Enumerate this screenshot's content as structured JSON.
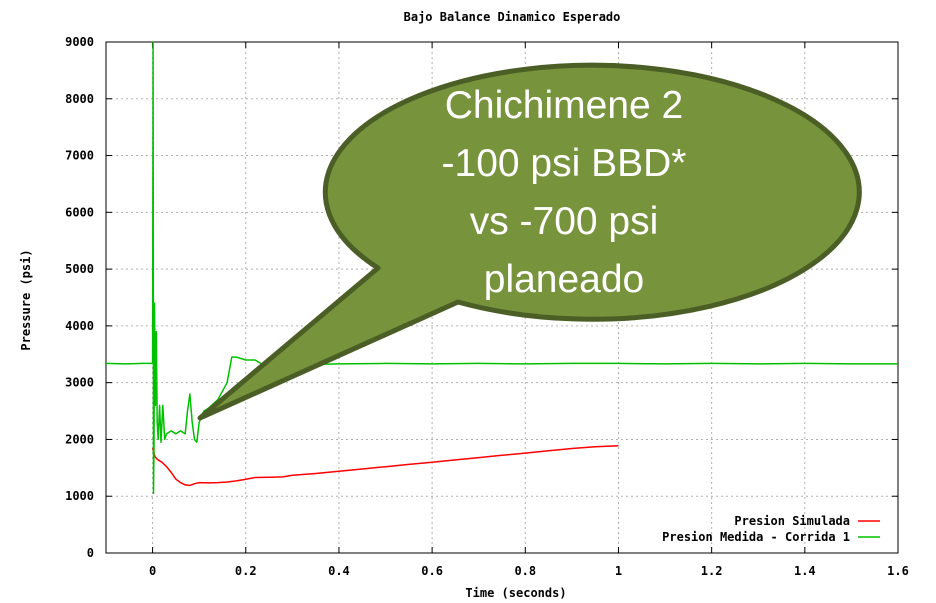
{
  "chart_data": {
    "type": "line",
    "title": "Bajo Balance Dinamico Esperado",
    "xlabel": "Time (seconds)",
    "ylabel": "Pressure (psi)",
    "xlim": [
      -0.1,
      1.6
    ],
    "ylim": [
      0,
      9000
    ],
    "x_ticks": [
      "0",
      "0.2",
      "0.4",
      "0.6",
      "0.8",
      "1",
      "1.2",
      "1.4",
      "1.6"
    ],
    "y_ticks": [
      "0",
      "1000",
      "2000",
      "3000",
      "4000",
      "5000",
      "6000",
      "7000",
      "8000",
      "9000"
    ],
    "grid": true,
    "legend_position": "bottom-right",
    "series": [
      {
        "name": "Presion Simulada",
        "color": "#ff0000",
        "points": [
          [
            0.0,
            1850
          ],
          [
            0.005,
            1700
          ],
          [
            0.01,
            1650
          ],
          [
            0.02,
            1600
          ],
          [
            0.03,
            1520
          ],
          [
            0.04,
            1420
          ],
          [
            0.05,
            1300
          ],
          [
            0.06,
            1240
          ],
          [
            0.07,
            1200
          ],
          [
            0.08,
            1190
          ],
          [
            0.09,
            1220
          ],
          [
            0.1,
            1240
          ],
          [
            0.12,
            1235
          ],
          [
            0.14,
            1240
          ],
          [
            0.16,
            1250
          ],
          [
            0.18,
            1270
          ],
          [
            0.2,
            1300
          ],
          [
            0.22,
            1330
          ],
          [
            0.25,
            1335
          ],
          [
            0.28,
            1340
          ],
          [
            0.3,
            1370
          ],
          [
            0.35,
            1400
          ],
          [
            0.4,
            1440
          ],
          [
            0.45,
            1480
          ],
          [
            0.5,
            1520
          ],
          [
            0.55,
            1560
          ],
          [
            0.6,
            1600
          ],
          [
            0.65,
            1640
          ],
          [
            0.7,
            1680
          ],
          [
            0.75,
            1720
          ],
          [
            0.8,
            1760
          ],
          [
            0.85,
            1800
          ],
          [
            0.9,
            1840
          ],
          [
            0.95,
            1870
          ],
          [
            1.0,
            1890
          ]
        ]
      },
      {
        "name": "Presion Medida - Corrida 1",
        "color": "#00c000",
        "points": [
          [
            -0.1,
            3340
          ],
          [
            -0.06,
            3330
          ],
          [
            -0.02,
            3340
          ],
          [
            -0.005,
            3340
          ],
          [
            0.0,
            3340
          ],
          [
            0.001,
            9000
          ],
          [
            0.002,
            1050
          ],
          [
            0.003,
            1900
          ],
          [
            0.004,
            4400
          ],
          [
            0.006,
            2600
          ],
          [
            0.008,
            3900
          ],
          [
            0.01,
            2300
          ],
          [
            0.012,
            2000
          ],
          [
            0.015,
            2600
          ],
          [
            0.018,
            1950
          ],
          [
            0.022,
            2600
          ],
          [
            0.026,
            2000
          ],
          [
            0.03,
            2100
          ],
          [
            0.04,
            2150
          ],
          [
            0.05,
            2100
          ],
          [
            0.06,
            2150
          ],
          [
            0.07,
            2100
          ],
          [
            0.075,
            2500
          ],
          [
            0.08,
            2800
          ],
          [
            0.085,
            2300
          ],
          [
            0.09,
            2000
          ],
          [
            0.095,
            1950
          ],
          [
            0.1,
            2300
          ],
          [
            0.11,
            2500
          ],
          [
            0.12,
            2550
          ],
          [
            0.14,
            2700
          ],
          [
            0.16,
            3000
          ],
          [
            0.17,
            3450
          ],
          [
            0.18,
            3450
          ],
          [
            0.2,
            3400
          ],
          [
            0.22,
            3400
          ],
          [
            0.24,
            3300
          ],
          [
            0.26,
            3290
          ],
          [
            0.28,
            3300
          ],
          [
            0.3,
            3310
          ],
          [
            0.34,
            3320
          ],
          [
            0.4,
            3330
          ],
          [
            0.5,
            3340
          ],
          [
            0.6,
            3330
          ],
          [
            0.7,
            3340
          ],
          [
            0.8,
            3330
          ],
          [
            0.9,
            3340
          ],
          [
            1.0,
            3340
          ],
          [
            1.1,
            3330
          ],
          [
            1.2,
            3340
          ],
          [
            1.3,
            3330
          ],
          [
            1.4,
            3340
          ],
          [
            1.5,
            3330
          ],
          [
            1.6,
            3330
          ]
        ]
      }
    ],
    "annotation": {
      "lines": [
        "Chichimene 2",
        "-100 psi BBD*",
        "vs -700 psi",
        "planeado"
      ],
      "fill": "#77933c",
      "stroke": "#4a5e26",
      "pointer_to": [
        0.095,
        2350
      ]
    }
  }
}
